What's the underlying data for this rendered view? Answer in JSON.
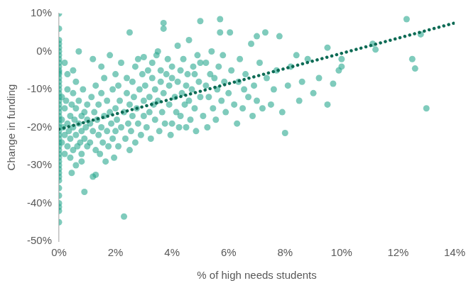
{
  "chart_data": {
    "type": "scatter",
    "x_label": "% of high needs students",
    "y_label": "Change in funding",
    "xlim": [
      0,
      14
    ],
    "xticks": [
      {
        "value": 0,
        "label": "0%"
      },
      {
        "value": 2,
        "label": "2%"
      },
      {
        "value": 4,
        "label": "4%"
      },
      {
        "value": 6,
        "label": "6%"
      },
      {
        "value": 8,
        "label": "8%"
      },
      {
        "value": 10,
        "label": "10%"
      },
      {
        "value": 12,
        "label": "12%"
      },
      {
        "value": 14,
        "label": "14%"
      }
    ],
    "ylim": [
      -50,
      10
    ],
    "yticks": [
      {
        "value": -50,
        "label": "-50%"
      },
      {
        "value": -40,
        "label": "-40%"
      },
      {
        "value": -30,
        "label": "-30%"
      },
      {
        "value": -20,
        "label": "-20%"
      },
      {
        "value": -10,
        "label": "-10%"
      },
      {
        "value": 0,
        "label": "0%"
      },
      {
        "value": 10,
        "label": "10%"
      }
    ],
    "grid": false,
    "series": [
      {
        "type": "scatter",
        "marker": "circle",
        "color": "#2aa98f",
        "x": [
          0,
          0,
          0,
          0,
          0,
          0,
          0,
          0,
          0,
          0,
          0,
          0,
          0,
          0,
          0,
          0,
          0,
          0,
          0,
          0,
          0,
          0,
          0,
          0,
          0,
          0,
          0,
          0,
          0,
          0,
          0,
          0,
          0,
          0,
          0,
          0,
          0,
          0,
          0,
          0,
          0,
          0,
          0,
          0,
          0,
          0,
          0,
          0.1,
          0.1,
          0.1,
          0.15,
          0.2,
          0.2,
          0.2,
          0.25,
          0.3,
          0.3,
          0.3,
          0.35,
          0.4,
          0.4,
          0.4,
          0.45,
          0.5,
          0.5,
          0.5,
          0.55,
          0.6,
          0.6,
          0.6,
          0.65,
          0.7,
          0.7,
          0.75,
          0.8,
          0.8,
          0.8,
          0.85,
          0.9,
          0.9,
          0.95,
          1.0,
          1.0,
          1.0,
          0.3,
          0.5,
          0.2,
          0.7,
          0.6,
          0.45,
          0.9,
          0.8,
          1.1,
          1.1,
          1.15,
          1.2,
          1.2,
          1.2,
          1.25,
          1.3,
          1.3,
          1.3,
          1.35,
          1.4,
          1.4,
          1.45,
          1.5,
          1.5,
          1.5,
          1.55,
          1.6,
          1.6,
          1.65,
          1.7,
          1.7,
          1.75,
          1.8,
          1.8,
          1.85,
          1.9,
          1.9,
          1.95,
          2.0,
          2.0,
          2.0,
          2.05,
          2.1,
          2.1,
          2.15,
          2.2,
          2.2,
          2.3,
          2.3,
          2.35,
          2.4,
          2.4,
          2.45,
          2.5,
          2.5,
          2.5,
          2.55,
          2.6,
          2.6,
          2.65,
          2.7,
          2.7,
          2.75,
          2.8,
          2.8,
          2.85,
          2.9,
          2.95,
          3.0,
          3.0,
          3.0,
          3.05,
          3.1,
          3.15,
          3.2,
          3.2,
          3.25,
          3.3,
          3.3,
          3.35,
          3.4,
          3.4,
          3.45,
          3.5,
          3.5,
          3.55,
          3.6,
          3.6,
          3.65,
          3.7,
          3.7,
          3.7,
          3.75,
          3.8,
          3.85,
          3.9,
          3.9,
          3.95,
          4.0,
          4.0,
          4.0,
          4.1,
          4.15,
          4.2,
          4.2,
          4.25,
          4.3,
          4.3,
          4.35,
          4.4,
          4.45,
          4.5,
          4.5,
          4.55,
          4.6,
          4.6,
          4.65,
          4.7,
          4.75,
          4.8,
          4.8,
          4.85,
          4.9,
          4.95,
          5.0,
          5.0,
          5.0,
          5.1,
          5.2,
          5.2,
          5.25,
          5.3,
          5.35,
          5.4,
          5.45,
          5.5,
          5.55,
          5.6,
          5.65,
          5.7,
          5.7,
          5.75,
          5.8,
          5.85,
          5.9,
          6.0,
          6.05,
          6.1,
          6.2,
          6.3,
          6.35,
          6.4,
          6.5,
          6.55,
          6.6,
          6.7,
          6.8,
          6.85,
          6.9,
          7.0,
          7.0,
          7.1,
          7.2,
          7.3,
          7.35,
          7.5,
          7.6,
          7.7,
          7.8,
          7.9,
          8.0,
          8.1,
          8.2,
          8.4,
          8.5,
          8.6,
          8.8,
          9.0,
          9.2,
          9.5,
          9.5,
          9.7,
          9.9,
          10.0,
          10.0,
          11.1,
          11.2,
          12.3,
          12.5,
          12.6,
          12.8,
          13.0
        ],
        "values": [
          10,
          6,
          3,
          2,
          1,
          0,
          -1,
          -2,
          -3,
          -4,
          -5,
          -5.5,
          -6,
          -7,
          -8,
          -9,
          -10,
          -11,
          -12,
          -13,
          -14,
          -15,
          -16,
          -17,
          -18,
          -19,
          -20,
          -21,
          -22,
          -23,
          -24,
          -25,
          -26,
          -27,
          -28,
          -29,
          -30,
          -31,
          -32,
          -33,
          -34,
          -36,
          -38,
          -40,
          -41,
          -42,
          -45,
          -12,
          -18,
          -24,
          -20,
          -15,
          -22,
          -27,
          -13,
          -19,
          -25,
          -10,
          -21,
          -17,
          -23,
          -28,
          -14,
          -20,
          -26,
          -11,
          -18,
          -22,
          -15,
          -30,
          -25,
          -19,
          -13,
          -24,
          -17,
          -21,
          -27,
          -10,
          -16,
          -23,
          -20,
          -14,
          -25,
          -18,
          -6,
          -5,
          -3,
          0,
          -8,
          -32,
          -37,
          -29,
          -19,
          -24,
          -12,
          -33,
          -21,
          -2,
          -16,
          -32.5,
          -26,
          -9,
          -18,
          -22,
          -14,
          -27,
          -4,
          -20,
          -11,
          -24,
          -17,
          -7,
          -29,
          -13,
          -21,
          -25,
          -1,
          -16,
          -19,
          -10,
          -23,
          -28,
          -15,
          -6,
          -21,
          -18,
          -25,
          -9,
          -13,
          -20,
          -3,
          -43.5,
          -16,
          -23,
          -11,
          -7,
          -19,
          5,
          -14,
          -26,
          -21,
          -8,
          -17,
          -12,
          -24,
          -4,
          -15,
          -2,
          -19,
          -10,
          -22,
          -6,
          -13,
          -1.5,
          -17,
          -9,
          -20,
          -5,
          -12,
          -16,
          -23,
          -7,
          -3,
          -14,
          -18,
          -10,
          -1,
          0,
          -13,
          -21,
          -8,
          -5,
          -16,
          7.5,
          6,
          -11,
          -19,
          -6,
          -2,
          -14,
          -9,
          -22,
          -19,
          -7,
          -4,
          -12,
          -16,
          1.5,
          -8,
          -20,
          -17,
          -5,
          -11,
          -2,
          -14,
          -20,
          -9,
          -6,
          3,
          -13,
          -18,
          -10,
          -4,
          -6,
          -15,
          -21,
          -1,
          -8,
          8,
          -12,
          -3,
          -17,
          -3,
          -9,
          -20,
          -12,
          -6,
          0,
          -15,
          -7,
          -18,
          -10,
          -4,
          8.5,
          5,
          -13,
          -1,
          -8,
          -16,
          -11,
          5,
          -5,
          -14,
          -19,
          -8,
          -2,
          -15,
          -10,
          -6,
          -12,
          2,
          -17,
          -9,
          4,
          -13,
          -3,
          -15,
          5,
          -7,
          -14,
          -10,
          -5,
          4,
          -16,
          -21.5,
          -9,
          -4,
          -1,
          -13,
          -8,
          -2,
          -11,
          -7,
          1,
          -14,
          -8.5,
          -5,
          -2,
          -4,
          2,
          0.5,
          8.5,
          -2,
          -4.5,
          4.5,
          -15
        ]
      },
      {
        "type": "line",
        "line_style": "dotted",
        "color": "#0d6b55",
        "x": [
          0,
          14
        ],
        "values": [
          -20.5,
          7.5
        ]
      }
    ]
  }
}
